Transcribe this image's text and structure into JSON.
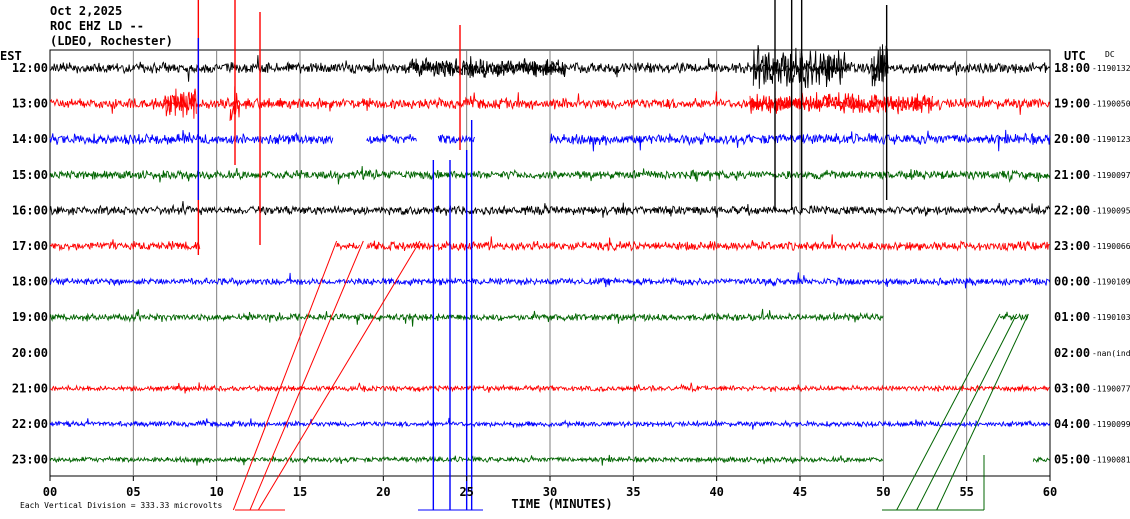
{
  "header": {
    "date": "Oct 2,2025",
    "station": "ROC EHZ LD --",
    "network": "(LDEO, Rochester)"
  },
  "chart_data": {
    "type": "line",
    "title": "Oct 2,2025",
    "xlabel": "TIME (MINUTES)",
    "xlim": [
      0,
      60
    ],
    "x_ticks": [
      "00",
      "05",
      "10",
      "15",
      "20",
      "25",
      "30",
      "35",
      "40",
      "45",
      "50",
      "55",
      "60"
    ],
    "left_axis_label": "EST",
    "right_axis_label": "UTC",
    "dc_label": "DC",
    "scale_note": "Each Vertical Division =  333.33 microvolts",
    "colors": {
      "black": "#000000",
      "red": "#ff0000",
      "blue": "#0000ff",
      "green": "#006400",
      "grid": "#7f7f7f"
    },
    "rows": [
      {
        "est": "12:00",
        "utc": "18:00",
        "dc": "-1190132",
        "color": "black",
        "segments": [
          [
            0,
            60
          ]
        ],
        "noise": 6
      },
      {
        "est": "13:00",
        "utc": "19:00",
        "dc": "-1190050",
        "color": "red",
        "segments": [
          [
            0,
            60
          ]
        ],
        "noise": 6
      },
      {
        "est": "14:00",
        "utc": "20:00",
        "dc": "-1190123",
        "color": "blue",
        "segments": [
          [
            0,
            17
          ],
          [
            19,
            22
          ],
          [
            23.3,
            25.5
          ],
          [
            30,
            60
          ]
        ],
        "noise": 6
      },
      {
        "est": "15:00",
        "utc": "21:00",
        "dc": "-1190097",
        "color": "green",
        "segments": [
          [
            0,
            60
          ]
        ],
        "noise": 5
      },
      {
        "est": "16:00",
        "utc": "22:00",
        "dc": "-1190095",
        "color": "black",
        "segments": [
          [
            0,
            60
          ]
        ],
        "noise": 5
      },
      {
        "est": "17:00",
        "utc": "23:00",
        "dc": "-1190066",
        "color": "red",
        "segments": [
          [
            0,
            9
          ],
          [
            17.2,
            18.6
          ],
          [
            19,
            60
          ]
        ],
        "noise": 5
      },
      {
        "est": "18:00",
        "utc": "00:00",
        "dc": "-1190109",
        "color": "blue",
        "segments": [
          [
            0,
            60
          ]
        ],
        "noise": 4
      },
      {
        "est": "19:00",
        "utc": "01:00",
        "dc": "-1190103",
        "color": "green",
        "segments": [
          [
            0,
            50
          ],
          [
            57,
            58.7
          ]
        ],
        "noise": 4
      },
      {
        "est": "20:00",
        "utc": "02:00",
        "dc": "-nan(ind",
        "color": "red",
        "segments": [],
        "noise": 0
      },
      {
        "est": "21:00",
        "utc": "03:00",
        "dc": "-1190077",
        "color": "red",
        "segments": [
          [
            0,
            60
          ]
        ],
        "noise": 3
      },
      {
        "est": "22:00",
        "utc": "04:00",
        "dc": "-1190099",
        "color": "blue",
        "segments": [
          [
            0,
            60
          ]
        ],
        "noise": 3
      },
      {
        "est": "23:00",
        "utc": "05:00",
        "dc": "-1190081",
        "color": "green",
        "segments": [
          [
            0,
            50
          ],
          [
            59,
            60
          ]
        ],
        "noise": 3
      }
    ],
    "events": [
      {
        "row": 0,
        "start": 42.2,
        "end": 47.8,
        "amp": 24,
        "color": "black"
      },
      {
        "row": 0,
        "start": 49.3,
        "end": 50.3,
        "amp": 26,
        "color": "black"
      },
      {
        "row": 0,
        "start": 21.5,
        "end": 31.0,
        "amp": 11,
        "color": "black"
      },
      {
        "row": 1,
        "start": 6.8,
        "end": 8.8,
        "amp": 18,
        "color": "red"
      },
      {
        "row": 1,
        "start": 10.8,
        "end": 11.4,
        "amp": 22,
        "color": "red"
      },
      {
        "row": 1,
        "start": 42.0,
        "end": 53.0,
        "amp": 12,
        "color": "red"
      }
    ]
  }
}
